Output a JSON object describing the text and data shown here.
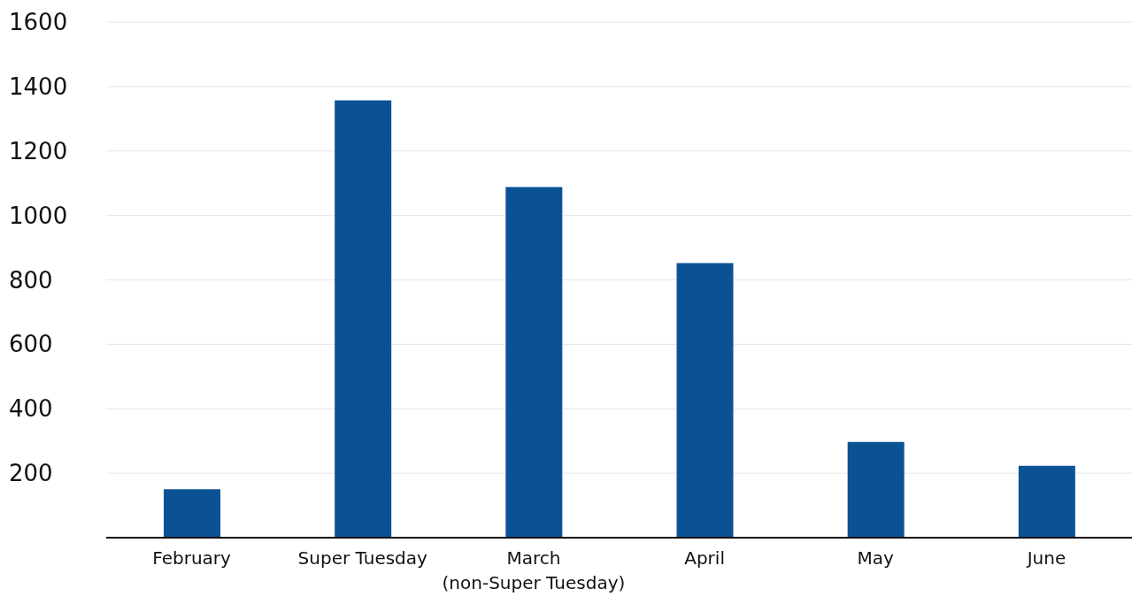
{
  "chart_data": {
    "type": "bar",
    "categories": [
      "February",
      "Super Tuesday",
      "March\n(non-Super Tuesday)",
      "April",
      "May",
      "June"
    ],
    "values": [
      150,
      1357,
      1088,
      852,
      297,
      223
    ],
    "color": "#0a5294",
    "ylim": [
      0,
      1600
    ],
    "yticks": [
      200,
      400,
      600,
      800,
      1000,
      1200,
      1400,
      1600
    ],
    "grid": "y"
  }
}
